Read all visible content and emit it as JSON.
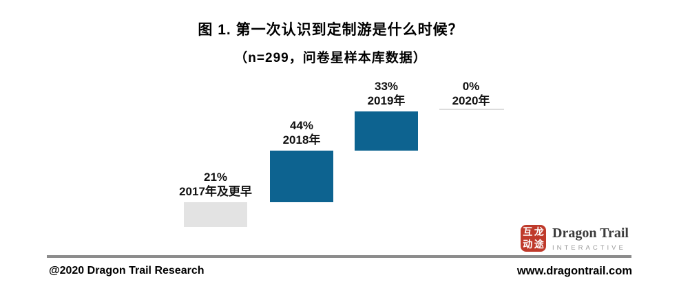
{
  "chart_data": {
    "type": "bar",
    "subtype": "waterfall-cumulative",
    "title": "图 1. 第一次认识到定制游是什么时候？",
    "subtitle": "（n=299，问卷星样本库数据）",
    "categories": [
      "2017年及更早",
      "2018年",
      "2019年",
      "2020年"
    ],
    "values": [
      21,
      44,
      33,
      0
    ],
    "value_labels": [
      "21%",
      "44%",
      "33%",
      "0%"
    ],
    "cumulative": [
      21,
      65,
      98,
      98
    ],
    "unit": "%",
    "ylim": [
      0,
      100
    ],
    "xlabel": "",
    "ylabel": "",
    "grid": false,
    "legend": false,
    "bar_colors": [
      "#e3e3e3",
      "#0d6390",
      "#0d6390",
      "#dcdcdc"
    ]
  },
  "footer": {
    "left_text": "@2020 Dragon Trail Research",
    "right_text": "www.dragontrail.com",
    "divider_color": "#8c8c8c"
  },
  "logo": {
    "name": "Dragon Trail",
    "tagline": "INTERACTIVE",
    "seal_chars": [
      "互",
      "龙",
      "动",
      "途"
    ],
    "seal_color": "#bf3a2b"
  }
}
